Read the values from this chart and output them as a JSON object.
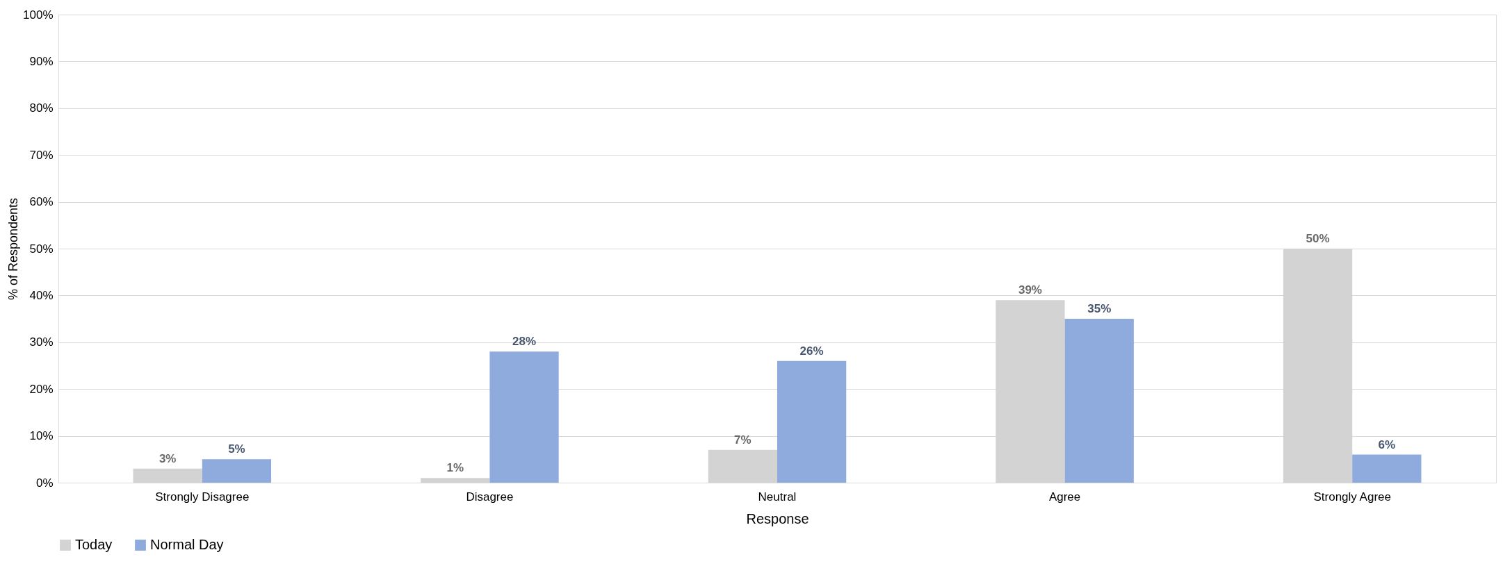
{
  "chart_data": {
    "type": "bar",
    "xlabel": "Response",
    "ylabel": "% of Respondents",
    "categories": [
      "Strongly Disagree",
      "Disagree",
      "Neutral",
      "Agree",
      "Strongly Agree"
    ],
    "series": [
      {
        "name": "Today",
        "color": "#d3d3d3",
        "values": [
          3,
          1,
          7,
          39,
          50
        ],
        "value_labels": [
          "3%",
          "1%",
          "7%",
          "39%",
          "50%"
        ]
      },
      {
        "name": "Normal Day",
        "color": "#8faadc",
        "values": [
          5,
          28,
          26,
          35,
          6
        ],
        "value_labels": [
          "5%",
          "28%",
          "26%",
          "35%",
          "6%"
        ]
      }
    ],
    "ylim": [
      0,
      100
    ],
    "yticks": [
      {
        "value": 0,
        "label": "0%"
      },
      {
        "value": 10,
        "label": "10%"
      },
      {
        "value": 20,
        "label": "20%"
      },
      {
        "value": 30,
        "label": "30%"
      },
      {
        "value": 40,
        "label": "40%"
      },
      {
        "value": 50,
        "label": "50%"
      },
      {
        "value": 60,
        "label": "60%"
      },
      {
        "value": 70,
        "label": "70%"
      },
      {
        "value": 80,
        "label": "80%"
      },
      {
        "value": 90,
        "label": "90%"
      },
      {
        "value": 100,
        "label": "100%"
      }
    ],
    "grid": "y",
    "legend": "bottom"
  }
}
